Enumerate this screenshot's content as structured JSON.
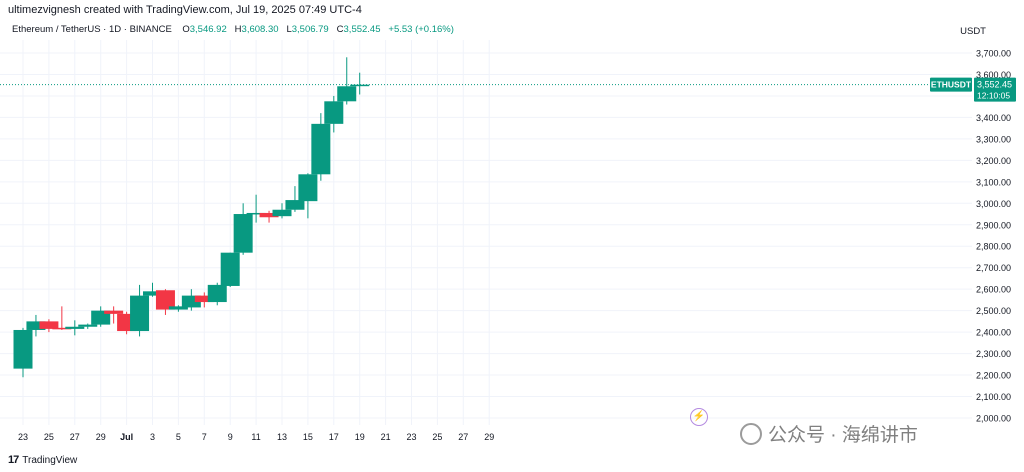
{
  "header": {
    "attribution": "ultimezvignesh created with TradingView.com, Jul 19, 2025 07:49 UTC-4"
  },
  "legend": {
    "symbol": "Ethereum / TetherUS · 1D · BINANCE",
    "o_label": "O",
    "o_value": "3,546.92",
    "h_label": "H",
    "h_value": "3,608.30",
    "l_label": "L",
    "l_value": "3,506.79",
    "c_label": "C",
    "c_value": "3,552.45",
    "change": "+5.53 (+0.16%)"
  },
  "currency": "USDT",
  "price_tag": {
    "symbol": "ETHUSDT",
    "price": "3,552.45",
    "countdown": "12:10:05"
  },
  "footer": {
    "brand": "TradingView",
    "logo": "17"
  },
  "watermark": {
    "text": "公众号 · 海绵讲市"
  },
  "colors": {
    "up": "#089981",
    "down": "#f23645",
    "grid": "#f0f3fa",
    "price_line": "#089981"
  },
  "chart_data": {
    "type": "candlestick",
    "title": "Ethereum / TetherUS · 1D · BINANCE",
    "ylim": [
      2000,
      3750
    ],
    "y_ticks": [
      "2,000.00",
      "2,100.00",
      "2,200.00",
      "2,300.00",
      "2,400.00",
      "2,500.00",
      "2,600.00",
      "2,700.00",
      "2,800.00",
      "2,900.00",
      "3,000.00",
      "3,100.00",
      "3,200.00",
      "3,300.00",
      "3,400.00",
      "3,500.00",
      "3,600.00",
      "3,700.00"
    ],
    "y_tick_values": [
      2000,
      2100,
      2200,
      2300,
      2400,
      2500,
      2600,
      2700,
      2800,
      2900,
      3000,
      3100,
      3200,
      3300,
      3400,
      3500,
      3600,
      3700
    ],
    "x_ticks": [
      "23",
      "25",
      "27",
      "29",
      "Jul",
      "3",
      "5",
      "7",
      "9",
      "11",
      "13",
      "15",
      "17",
      "19",
      "21",
      "23",
      "25",
      "27",
      "29"
    ],
    "x_tick_dates": [
      "2025-06-23",
      "2025-06-25",
      "2025-06-27",
      "2025-06-29",
      "2025-07-01",
      "2025-07-03",
      "2025-07-05",
      "2025-07-07",
      "2025-07-09",
      "2025-07-11",
      "2025-07-13",
      "2025-07-15",
      "2025-07-17",
      "2025-07-19",
      "2025-07-21",
      "2025-07-23",
      "2025-07-25",
      "2025-07-27",
      "2025-07-29"
    ],
    "candles": [
      {
        "date": "2025-06-23",
        "o": 2230,
        "h": 2420,
        "l": 2190,
        "c": 2410
      },
      {
        "date": "2025-06-24",
        "o": 2410,
        "h": 2480,
        "l": 2380,
        "c": 2450
      },
      {
        "date": "2025-06-25",
        "o": 2450,
        "h": 2460,
        "l": 2400,
        "c": 2415
      },
      {
        "date": "2025-06-26",
        "o": 2420,
        "h": 2520,
        "l": 2410,
        "c": 2415
      },
      {
        "date": "2025-06-27",
        "o": 2415,
        "h": 2455,
        "l": 2385,
        "c": 2425
      },
      {
        "date": "2025-06-28",
        "o": 2425,
        "h": 2440,
        "l": 2415,
        "c": 2435
      },
      {
        "date": "2025-06-29",
        "o": 2435,
        "h": 2520,
        "l": 2425,
        "c": 2500
      },
      {
        "date": "2025-06-30",
        "o": 2500,
        "h": 2520,
        "l": 2440,
        "c": 2485
      },
      {
        "date": "2025-07-01",
        "o": 2485,
        "h": 2495,
        "l": 2390,
        "c": 2405
      },
      {
        "date": "2025-07-02",
        "o": 2405,
        "h": 2620,
        "l": 2380,
        "c": 2570
      },
      {
        "date": "2025-07-03",
        "o": 2570,
        "h": 2630,
        "l": 2565,
        "c": 2590
      },
      {
        "date": "2025-07-04",
        "o": 2595,
        "h": 2600,
        "l": 2480,
        "c": 2505
      },
      {
        "date": "2025-07-05",
        "o": 2505,
        "h": 2525,
        "l": 2495,
        "c": 2520
      },
      {
        "date": "2025-07-06",
        "o": 2515,
        "h": 2600,
        "l": 2500,
        "c": 2570
      },
      {
        "date": "2025-07-07",
        "o": 2570,
        "h": 2585,
        "l": 2515,
        "c": 2540
      },
      {
        "date": "2025-07-08",
        "o": 2540,
        "h": 2630,
        "l": 2525,
        "c": 2620
      },
      {
        "date": "2025-07-09",
        "o": 2615,
        "h": 2770,
        "l": 2610,
        "c": 2770
      },
      {
        "date": "2025-07-10",
        "o": 2770,
        "h": 3000,
        "l": 2760,
        "c": 2950
      },
      {
        "date": "2025-07-11",
        "o": 2950,
        "h": 3040,
        "l": 2910,
        "c": 2955
      },
      {
        "date": "2025-07-12",
        "o": 2955,
        "h": 2965,
        "l": 2910,
        "c": 2935
      },
      {
        "date": "2025-07-13",
        "o": 2940,
        "h": 3000,
        "l": 2930,
        "c": 2970
      },
      {
        "date": "2025-07-14",
        "o": 2970,
        "h": 3080,
        "l": 2960,
        "c": 3015
      },
      {
        "date": "2025-07-15",
        "o": 3010,
        "h": 3140,
        "l": 2930,
        "c": 3135
      },
      {
        "date": "2025-07-16",
        "o": 3135,
        "h": 3420,
        "l": 3105,
        "c": 3370
      },
      {
        "date": "2025-07-17",
        "o": 3370,
        "h": 3500,
        "l": 3330,
        "c": 3475
      },
      {
        "date": "2025-07-18",
        "o": 3475,
        "h": 3680,
        "l": 3460,
        "c": 3545
      },
      {
        "date": "2025-07-19",
        "o": 3546.92,
        "h": 3608.3,
        "l": 3506.79,
        "c": 3552.45
      }
    ],
    "last_price": 3552.45
  }
}
